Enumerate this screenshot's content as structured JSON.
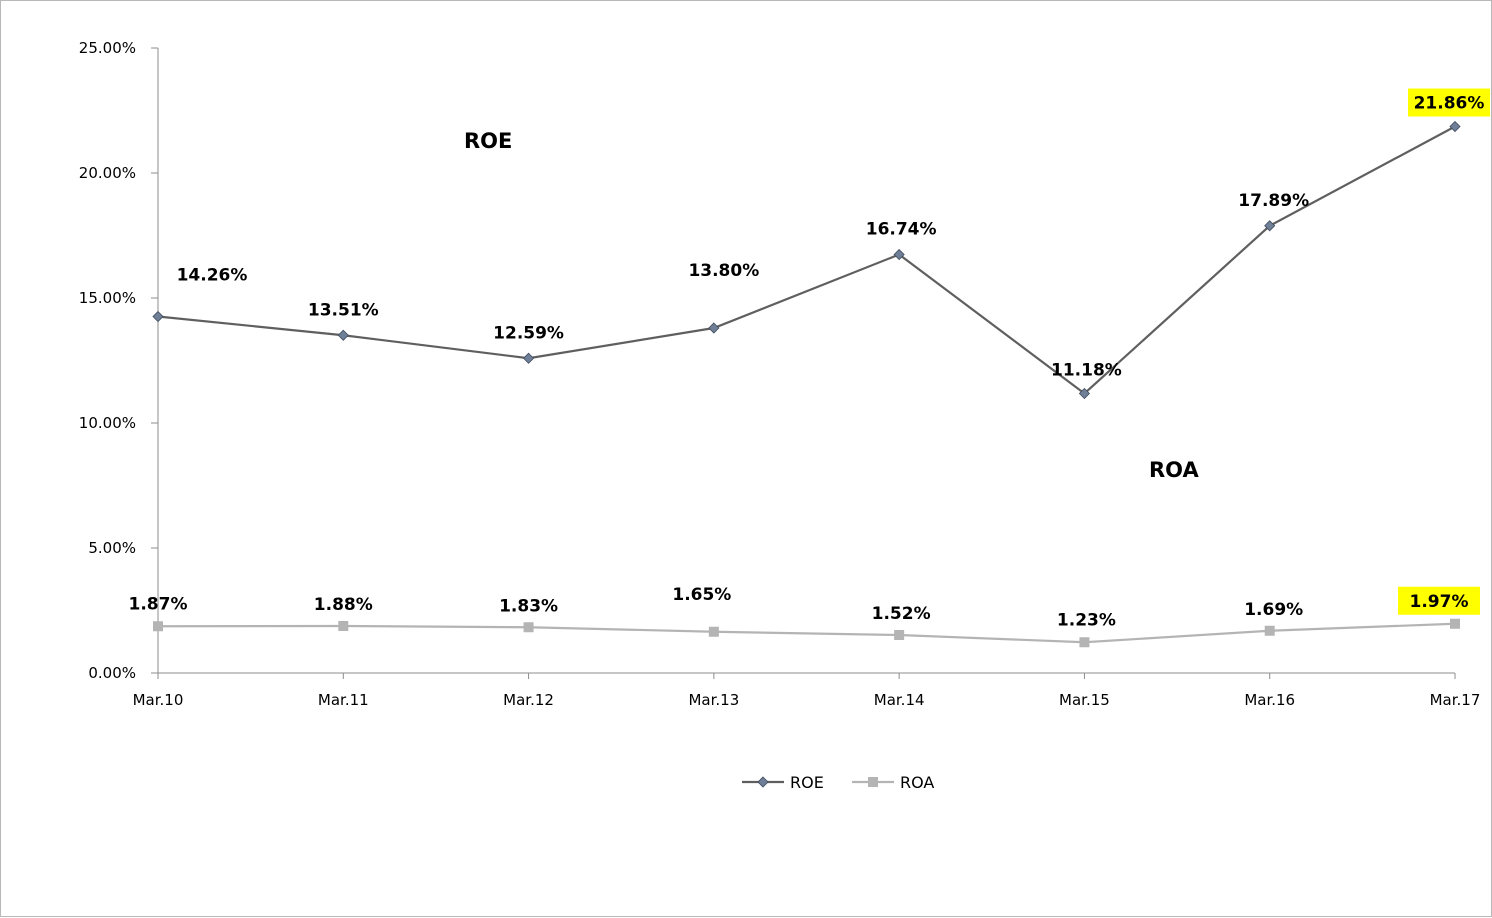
{
  "chart_data": {
    "type": "line",
    "categories": [
      "Mar.10",
      "Mar.11",
      "Mar.12",
      "Mar.13",
      "Mar.14",
      "Mar.15",
      "Mar.16",
      "Mar.17"
    ],
    "ylim": [
      0,
      25
    ],
    "y_ticks": [
      "0.00%",
      "5.00%",
      "10.00%",
      "15.00%",
      "20.00%",
      "25.00%"
    ],
    "grid": false,
    "legend_position": "bottom",
    "annotations": {
      "roe": "ROE",
      "roa": "ROA"
    },
    "series": [
      {
        "name": "ROE",
        "color": "#5f5f5f",
        "marker": "diamond",
        "marker_color": "#6f7f97",
        "values": [
          14.26,
          13.51,
          12.59,
          13.8,
          16.74,
          11.18,
          17.89,
          21.86
        ],
        "labels": [
          "14.26%",
          "13.51%",
          "12.59%",
          "13.80%",
          "16.74%",
          "11.18%",
          "17.89%",
          "21.86%"
        ]
      },
      {
        "name": "ROA",
        "color": "#b4b4b4",
        "marker": "square",
        "marker_color": "#b4b4b4",
        "values": [
          1.87,
          1.88,
          1.83,
          1.65,
          1.52,
          1.23,
          1.69,
          1.97
        ],
        "labels": [
          "1.87%",
          "1.88%",
          "1.83%",
          "1.65%",
          "1.52%",
          "1.23%",
          "1.69%",
          "1.97%"
        ]
      }
    ],
    "highlight_color": "#ffff00",
    "highlighted_labels": [
      "21.86%",
      "1.97%"
    ]
  }
}
